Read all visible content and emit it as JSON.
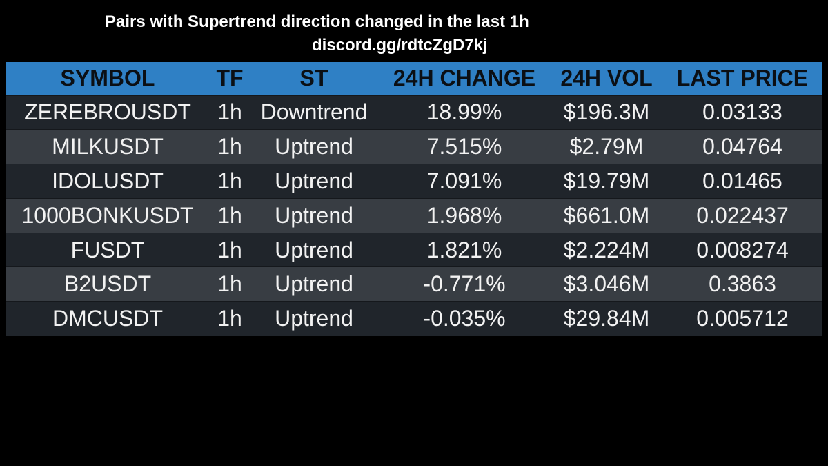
{
  "header": {
    "title": "Pairs with Supertrend direction changed in the last 1h",
    "subtitle": "discord.gg/rdtcZgD7kj"
  },
  "colors": {
    "background": "#000000",
    "header_bg": "#2f80c5",
    "row_dark": "#20252b",
    "row_light": "#383d43"
  },
  "table": {
    "columns": [
      "SYMBOL",
      "TF",
      "ST",
      "24H CHANGE",
      "24H VOL",
      "LAST PRICE"
    ],
    "rows": [
      [
        "ZEREBROUSDT",
        "1h",
        "Downtrend",
        "18.99%",
        "$196.3M",
        "0.03133"
      ],
      [
        "MILKUSDT",
        "1h",
        "Uptrend",
        "7.515%",
        "$2.79M",
        "0.04764"
      ],
      [
        "IDOLUSDT",
        "1h",
        "Uptrend",
        "7.091%",
        "$19.79M",
        "0.01465"
      ],
      [
        "1000BONKUSDT",
        "1h",
        "Uptrend",
        "1.968%",
        "$661.0M",
        "0.022437"
      ],
      [
        "FUSDT",
        "1h",
        "Uptrend",
        "1.821%",
        "$2.224M",
        "0.008274"
      ],
      [
        "B2USDT",
        "1h",
        "Uptrend",
        "-0.771%",
        "$3.046M",
        "0.3863"
      ],
      [
        "DMCUSDT",
        "1h",
        "Uptrend",
        "-0.035%",
        "$29.84M",
        "0.005712"
      ]
    ]
  }
}
